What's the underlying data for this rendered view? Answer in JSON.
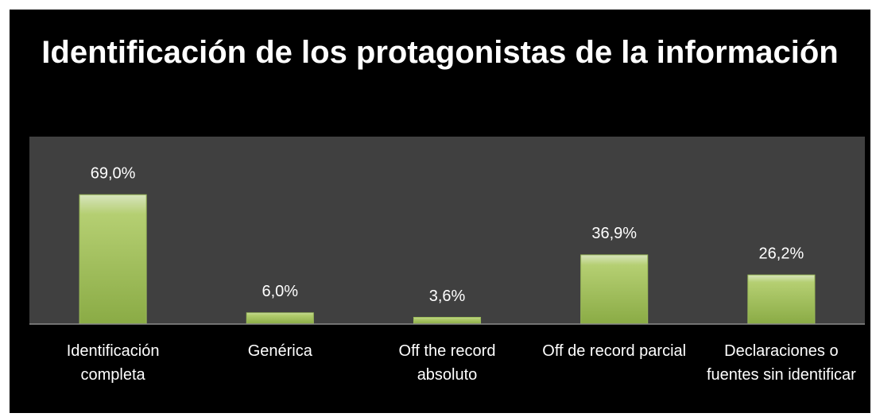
{
  "chart_data": {
    "type": "bar",
    "title": "Identificación de los protagonistas de la información",
    "categories": [
      "Identificación completa",
      "Genérica",
      "Off the record absoluto",
      "Off de record parcial",
      "Declaraciones o fuentes sin identificar"
    ],
    "values": [
      69.0,
      6.0,
      3.6,
      36.9,
      26.2
    ],
    "value_labels": [
      "69,0%",
      "6,0%",
      "3,6%",
      "36,9%",
      "26,2%"
    ],
    "color": "#9bbb59",
    "ylim": [
      0,
      100
    ]
  }
}
